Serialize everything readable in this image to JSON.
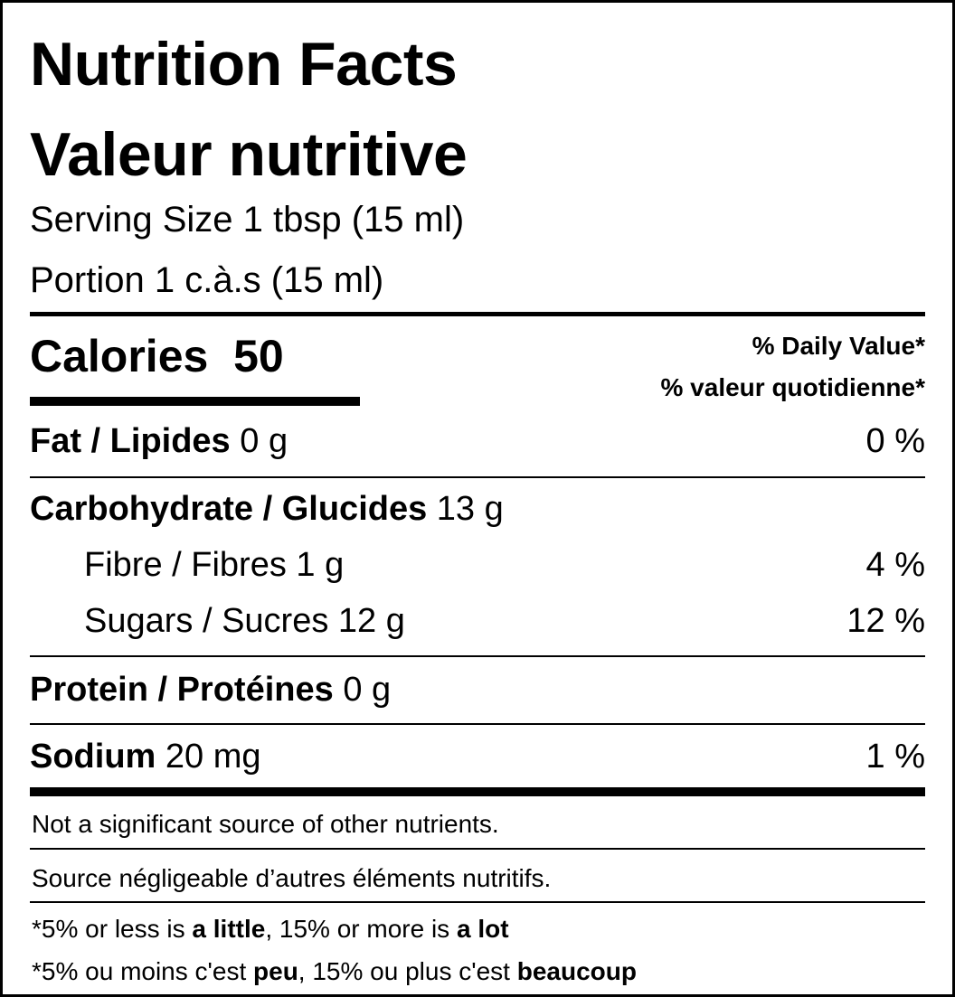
{
  "header": {
    "title_en": "Nutrition Facts",
    "title_fr": "Valeur nutritive",
    "serving_en": "Serving Size 1 tbsp (15 ml)",
    "serving_fr": "Portion 1 c.à.s (15 ml)"
  },
  "calories": {
    "label": "Calories",
    "value": "50",
    "dv_header_en": "% Daily Value*",
    "dv_header_fr": "% valeur quotidienne*"
  },
  "nutrients": [
    {
      "name": "Fat / Lipides",
      "amount": "0 g",
      "dv": "0 %"
    },
    {
      "name": "Carbohydrate / Glucides",
      "amount": "13 g",
      "dv": ""
    },
    {
      "name": "Fibre / Fibres",
      "amount": "1 g",
      "dv": "4 %"
    },
    {
      "name": "Sugars / Sucres",
      "amount": "12 g",
      "dv": "12 %"
    },
    {
      "name": "Protein / Protéines",
      "amount": "0 g",
      "dv": ""
    },
    {
      "name": "Sodium",
      "amount": "20 mg",
      "dv": "1 %"
    }
  ],
  "footer": {
    "not_significant_en": "Not a significant source of other nutrients.",
    "not_significant_fr": "Source négligeable d’autres éléments nutritifs.",
    "note_en": {
      "p1": "*5% or less is ",
      "b1": "a little",
      "p2": ", 15% or more is ",
      "b2": "a lot"
    },
    "note_fr": {
      "p1": "*5% ou moins c'est ",
      "b1": "peu",
      "p2": ", 15% ou plus c'est ",
      "b2": "beaucoup"
    }
  }
}
